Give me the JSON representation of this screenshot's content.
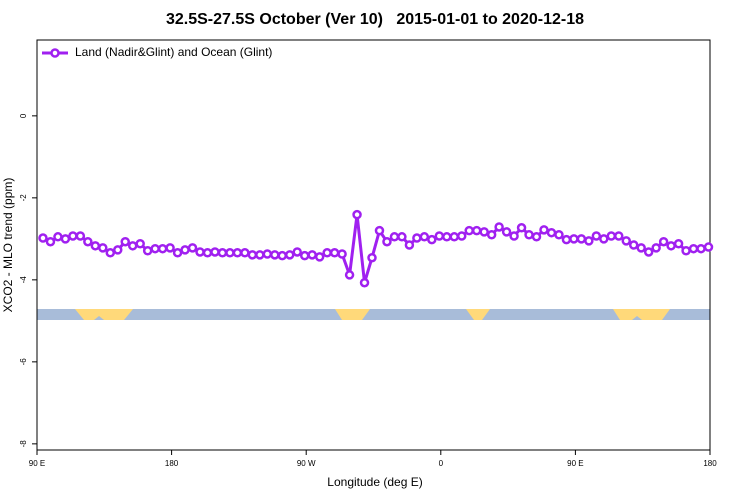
{
  "chart_data": {
    "type": "line",
    "title": "32.5S-27.5S October (Ver 10)   2015-01-01 to 2020-12-18",
    "x_label": "Longitude (deg E)",
    "y_label": "XCO2 - MLO trend (ppm)",
    "xlim": [
      90,
      540
    ],
    "ylim": [
      -8.15,
      1.85
    ],
    "xticks": [
      {
        "value": 90,
        "label": "90 E"
      },
      {
        "value": 180,
        "label": "180"
      },
      {
        "value": 270,
        "label": "90 W"
      },
      {
        "value": 360,
        "label": "0"
      },
      {
        "value": 450,
        "label": "90 E"
      },
      {
        "value": 540,
        "label": "180"
      }
    ],
    "yticks": [
      0,
      -2,
      -4,
      -6,
      -8
    ],
    "legend": "top-left",
    "x": [
      94,
      99,
      104,
      109,
      114,
      119,
      124,
      129,
      134,
      139,
      144,
      149,
      154,
      159,
      164,
      169,
      174,
      179,
      184,
      189,
      194,
      199,
      204,
      209,
      214,
      219,
      224,
      229,
      234,
      239,
      244,
      249,
      254,
      259,
      264,
      269,
      274,
      279,
      284,
      289,
      294,
      299,
      304,
      309,
      314,
      319,
      324,
      329,
      334,
      339,
      344,
      349,
      354,
      359,
      364,
      369,
      374,
      379,
      384,
      389,
      394,
      399,
      404,
      409,
      414,
      419,
      424,
      429,
      434,
      439,
      444,
      449,
      454,
      459,
      464,
      469,
      474,
      479,
      484,
      489,
      494,
      499,
      504,
      509,
      514,
      519,
      524,
      529,
      534,
      539
    ],
    "series": [
      {
        "name": "Land (Nadir&Glint) and Ocean (Glint)",
        "color": "#a020f0",
        "values": [
          -2.98,
          -3.07,
          -2.95,
          -3.0,
          -2.93,
          -2.93,
          -3.07,
          -3.17,
          -3.22,
          -3.34,
          -3.27,
          -3.07,
          -3.17,
          -3.12,
          -3.29,
          -3.24,
          -3.24,
          -3.22,
          -3.34,
          -3.27,
          -3.22,
          -3.32,
          -3.34,
          -3.32,
          -3.34,
          -3.34,
          -3.34,
          -3.34,
          -3.39,
          -3.39,
          -3.37,
          -3.39,
          -3.41,
          -3.39,
          -3.32,
          -3.41,
          -3.39,
          -3.44,
          -3.34,
          -3.34,
          -3.37,
          -3.88,
          -2.41,
          -4.07,
          -3.46,
          -2.8,
          -3.07,
          -2.95,
          -2.95,
          -3.15,
          -2.98,
          -2.95,
          -3.02,
          -2.93,
          -2.95,
          -2.95,
          -2.93,
          -2.8,
          -2.8,
          -2.83,
          -2.9,
          -2.71,
          -2.83,
          -2.93,
          -2.73,
          -2.9,
          -2.95,
          -2.78,
          -2.85,
          -2.9,
          -3.02,
          -3.0,
          -3.0,
          -3.05,
          -2.93,
          -3.0,
          -2.93,
          -2.93,
          -3.05,
          -3.15,
          -3.22,
          -3.32,
          -3.22,
          -3.07,
          -3.17,
          -3.12,
          -3.29,
          -3.24,
          -3.24,
          -3.2
        ]
      }
    ]
  }
}
